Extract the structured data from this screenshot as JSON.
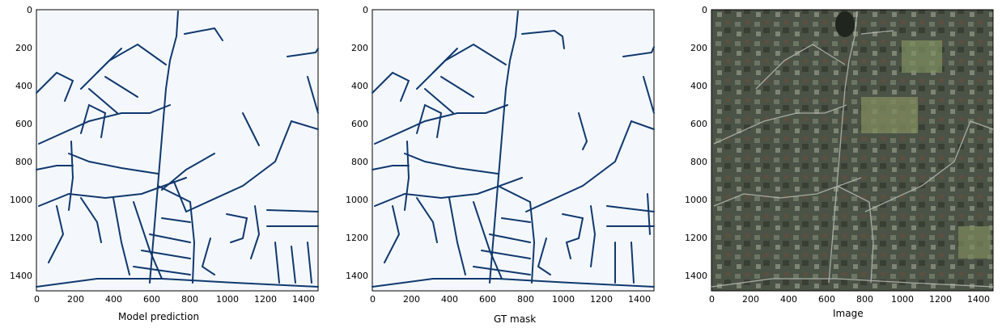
{
  "axes": {
    "x_ticks": [
      "0",
      "200",
      "400",
      "600",
      "800",
      "1000",
      "1200",
      "1400"
    ],
    "y_ticks": [
      "0",
      "200",
      "400",
      "600",
      "800",
      "1000",
      "1200",
      "1400"
    ]
  },
  "panels": [
    {
      "id": "prediction",
      "caption": "Model prediction"
    },
    {
      "id": "gt",
      "caption": "GT mask"
    },
    {
      "id": "image",
      "caption": "Image"
    }
  ],
  "colors": {
    "mask_background": "#f4f8fd",
    "road_line": "#10386e",
    "aerial_base": "#4b5347"
  }
}
